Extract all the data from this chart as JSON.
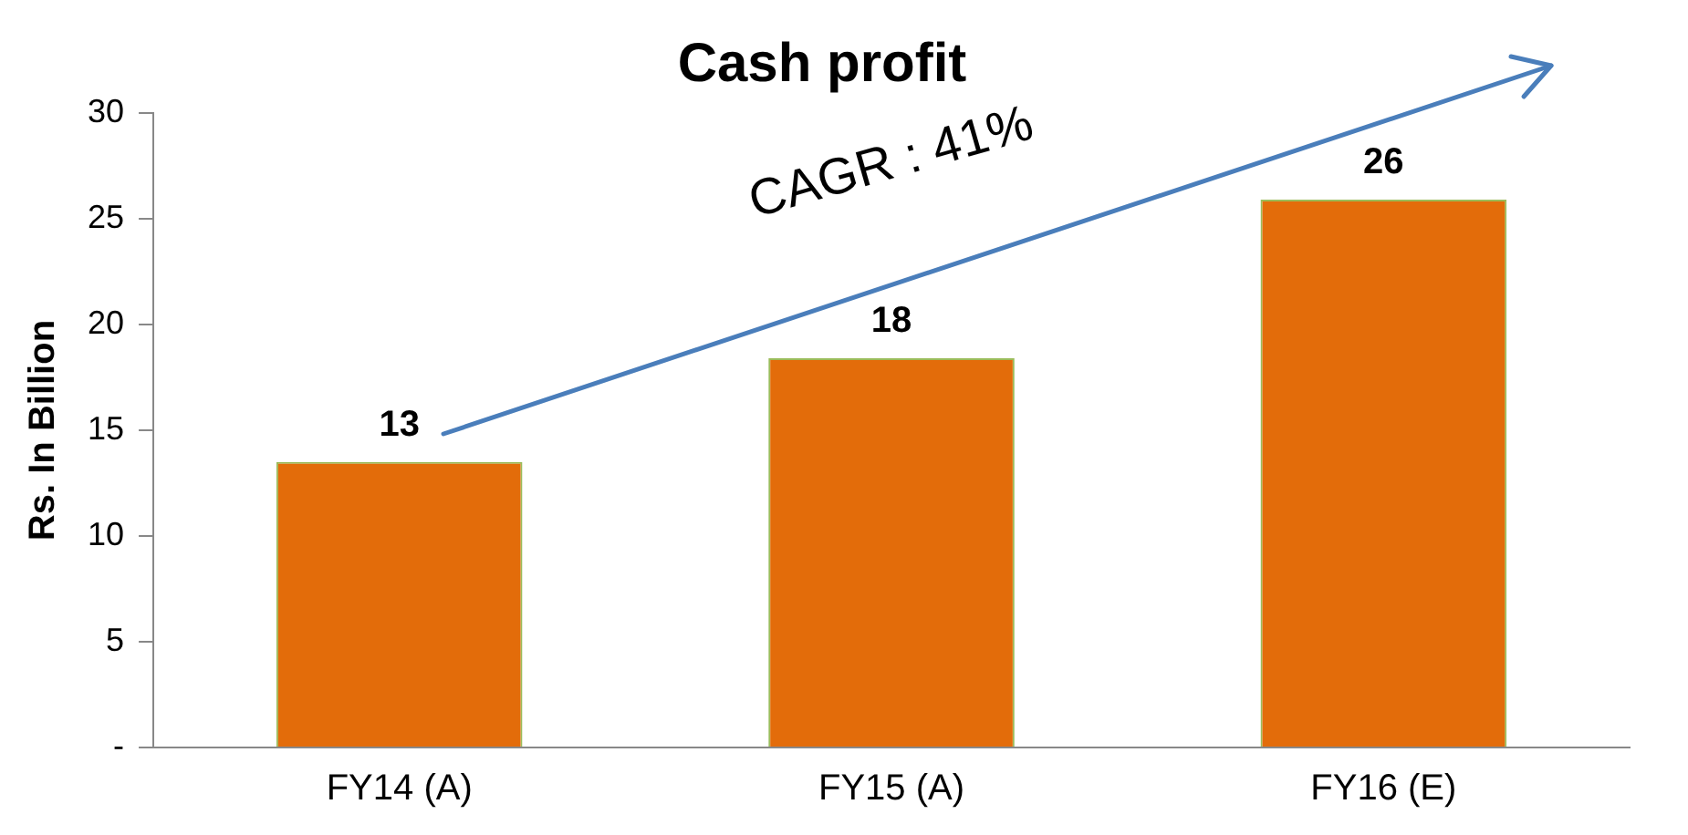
{
  "chart_data": {
    "type": "bar",
    "title": "Cash profit",
    "ylabel": "Rs. In Billion",
    "categories": [
      "FY14 (A)",
      "FY15 (A)",
      "FY16 (E)"
    ],
    "values": [
      13.5,
      18.4,
      25.9
    ],
    "value_labels": [
      "13",
      "18",
      "26"
    ],
    "color": "#e36c0a",
    "ylim": [
      0,
      30
    ],
    "yticks": [
      {
        "value": 0,
        "label": "-"
      },
      5,
      10,
      15,
      20,
      25,
      30
    ],
    "grid": false,
    "legend": false,
    "annotations": [
      "CAGR : 41%"
    ]
  }
}
